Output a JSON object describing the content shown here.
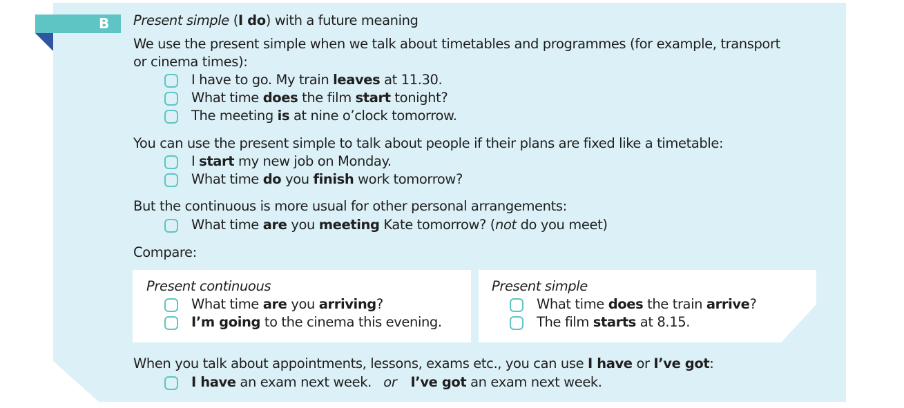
{
  "section": {
    "letter": "B",
    "heading": {
      "italic1": "Present simple",
      "open": " (",
      "bold": "I do",
      "close": ")",
      "rest": " with a future meaning"
    }
  },
  "intro": {
    "line1": "We use the present simple when we talk about timetables and programmes (for example, transport",
    "line2": "or cinema times):"
  },
  "ex_timetable": [
    {
      "a": "I have to go.  My train ",
      "b": "leaves",
      "c": " at 11.30."
    },
    {
      "a": "What time ",
      "b": "does",
      "c": " the film ",
      "d": "start",
      "e": " tonight?"
    },
    {
      "a": "The meeting ",
      "b": "is",
      "c": " at nine o’clock tomorrow."
    }
  ],
  "people": {
    "text": "You can use the present simple to talk about people if their plans are fixed like a timetable:"
  },
  "ex_people": [
    {
      "a": "I ",
      "b": "start",
      "c": " my new job on Monday."
    },
    {
      "a": "What time ",
      "b": "do",
      "c": " you ",
      "d": "finish",
      "e": " work tomorrow?"
    }
  ],
  "continuous": {
    "text": "But the continuous is more usual for other personal arrangements:"
  },
  "ex_continuous": {
    "a": "What time ",
    "b": "are",
    "c": " you ",
    "d": "meeting",
    "e": " Kate tomorrow?  (",
    "f": "not",
    "g": " do you meet)"
  },
  "compare": {
    "label": "Compare:",
    "left": {
      "title": "Present continuous",
      "rows": [
        {
          "a": "What time ",
          "b": "are",
          "c": " you ",
          "d": "arriving",
          "e": "?"
        },
        {
          "a": "",
          "b": "I’m going",
          "c": " to the cinema this evening."
        }
      ]
    },
    "right": {
      "title": "Present simple",
      "rows": [
        {
          "a": "What time ",
          "b": "does",
          "c": " the train ",
          "d": "arrive",
          "e": "?"
        },
        {
          "a": "The film ",
          "b": "starts",
          "c": " at 8.15."
        }
      ]
    }
  },
  "appointments": {
    "a": "When you talk about appointments, lessons, exams etc., you can use ",
    "b": "I have",
    "c": " or ",
    "d": "I’ve got",
    "e": ":"
  },
  "ex_appointments": {
    "a": "I have",
    "b": " an exam next week.   ",
    "c": "or",
    "d": "I’ve got",
    "e": " an exam next week."
  },
  "colors": {
    "panel": "#dcf0f7",
    "accent_teal": "#5ec4c4",
    "accent_blue": "#2f56a4",
    "text": "#1e1e1e",
    "box": "#ffffff"
  }
}
